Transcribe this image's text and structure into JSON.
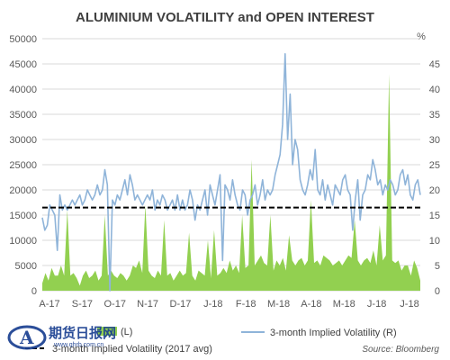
{
  "chart_data": {
    "type": "line",
    "title": "ALUMINIUM VOLATILITY and OPEN INTEREST",
    "y_left": {
      "ylim": [
        0,
        50000
      ],
      "ticks": [
        0,
        5000,
        10000,
        15000,
        20000,
        25000,
        30000,
        35000,
        40000,
        45000,
        50000
      ]
    },
    "y_right": {
      "label": "%",
      "ylim": [
        0,
        50
      ],
      "ticks": [
        0,
        5,
        10,
        15,
        20,
        25,
        30,
        35,
        40,
        45
      ]
    },
    "x_ticks": [
      "A-17",
      "S-17",
      "O-17",
      "N-17",
      "D-17",
      "J-18",
      "F-18",
      "M-18",
      "A-18",
      "M-18",
      "J-18",
      "J-18"
    ],
    "grid": "horizontal",
    "series": [
      {
        "name": "(L)",
        "kind": "area",
        "axis": "left",
        "color": "#92d050",
        "values": [
          1500,
          3500,
          2000,
          4500,
          3000,
          3000,
          5000,
          3000,
          16000,
          3000,
          3500,
          2500,
          1000,
          3000,
          4000,
          2500,
          3000,
          4000,
          2000,
          3000,
          15000,
          3000,
          4000,
          3000,
          2500,
          3500,
          3000,
          2000,
          3000,
          5000,
          4500,
          6000,
          3500,
          17000,
          4000,
          3000,
          2500,
          4000,
          3000,
          14000,
          3000,
          3500,
          2000,
          3000,
          4000,
          3000,
          3500,
          11500,
          3000,
          2000,
          4000,
          3500,
          3000,
          10000,
          2500,
          12000,
          3000,
          3500,
          4500,
          3500,
          6000,
          4000,
          5000,
          3500,
          15000,
          4500,
          5000,
          26000,
          5000,
          6000,
          7000,
          5500,
          5000,
          15000,
          4000,
          6000,
          5000,
          6500,
          4000,
          11000,
          6000,
          5000,
          6000,
          6500,
          5000,
          6000,
          18000,
          5500,
          6000,
          5000,
          7000,
          6500,
          6000,
          5000,
          5500,
          6000,
          5000,
          6000,
          7000,
          6500,
          14000,
          6000,
          5000,
          6000,
          6500,
          5500,
          8000,
          5000,
          13000,
          6000,
          7000,
          43000,
          6000,
          5500,
          6000,
          4000,
          5000,
          5000,
          3000,
          6000,
          4500,
          2000
        ]
      },
      {
        "name": "3-month Implied Volatility (R)",
        "kind": "line",
        "axis": "right",
        "color": "#8fb4d9",
        "values": [
          14.5,
          12,
          13,
          17,
          16,
          15,
          8,
          19,
          16,
          17,
          16,
          17,
          18,
          17,
          18,
          19,
          17,
          18,
          20,
          19,
          18,
          19,
          21,
          19,
          20,
          24,
          21,
          0,
          18,
          17,
          19,
          18,
          20,
          22,
          19,
          23,
          21,
          18,
          19,
          18,
          17,
          18,
          19,
          18,
          20,
          16,
          18,
          17,
          19,
          18,
          16,
          17,
          18,
          16,
          19,
          16,
          18,
          16,
          17,
          20,
          18,
          14,
          17,
          16,
          18,
          20,
          15,
          21,
          19,
          17,
          20,
          23,
          6,
          21,
          20,
          18,
          22,
          19,
          17,
          16,
          20,
          19,
          15,
          18,
          19,
          21,
          17,
          19,
          22,
          18,
          20,
          19,
          20,
          23,
          25,
          27,
          33,
          47,
          30,
          39,
          25,
          30,
          28,
          22,
          20,
          19,
          21,
          24,
          22,
          28,
          20,
          19,
          22,
          18,
          21,
          19,
          17,
          21,
          20,
          19,
          22,
          23,
          20,
          19,
          12,
          18,
          22,
          14,
          19,
          20,
          23,
          22,
          26,
          24,
          21,
          22,
          19,
          21,
          20,
          22,
          21,
          19,
          20,
          23,
          24,
          21,
          23,
          19,
          18,
          21,
          22,
          19
        ]
      },
      {
        "name": "3-month Implied Volatility (2017 avg)",
        "kind": "line",
        "style": "dashed",
        "axis": "right",
        "color": "#000000",
        "values": [
          16.5
        ]
      }
    ],
    "legend": "bottom",
    "annotations": [
      "Source: Bloomberg"
    ]
  },
  "watermark": {
    "text": "期货日报网",
    "url": "www.qhrb.com.cn"
  }
}
